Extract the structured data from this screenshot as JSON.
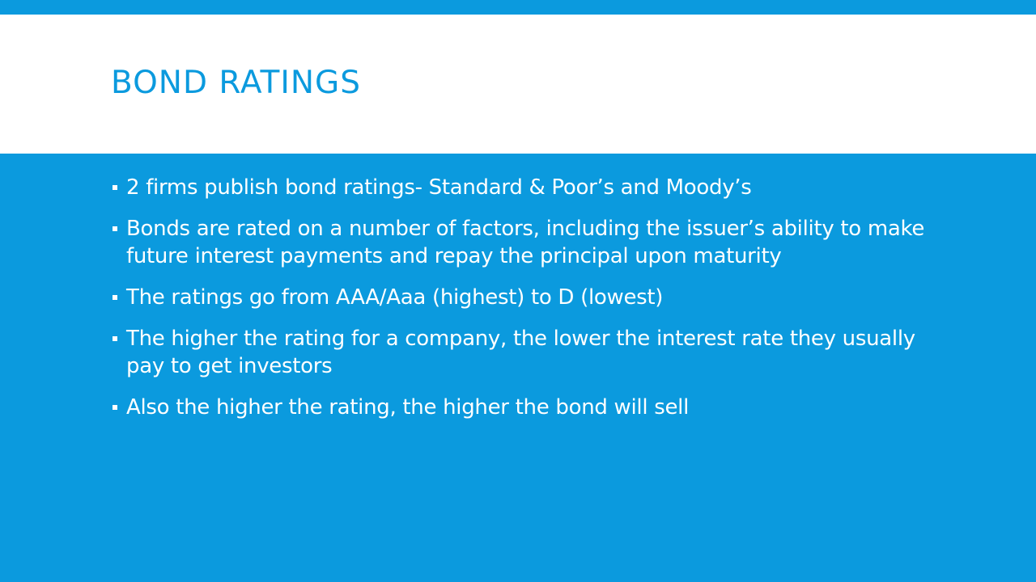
{
  "slide": {
    "title": "BOND RATINGS",
    "bullets": [
      "2 firms publish bond ratings- Standard & Poor’s and Moody’s",
      "Bonds are rated on a number of factors, including the issuer’s ability to make future interest payments and repay the principal upon maturity",
      "The ratings go from AAA/Aaa (highest) to D (lowest)",
      "The higher the rating for a company, the lower the interest rate they usually pay to get investors",
      "Also the higher the rating, the higher the bond will sell"
    ]
  },
  "colors": {
    "accent": "#0B9ADE",
    "title_background": "#FFFFFF",
    "body_text": "#FFFFFF"
  },
  "icons": {
    "bullet": "square-bullet-icon"
  }
}
